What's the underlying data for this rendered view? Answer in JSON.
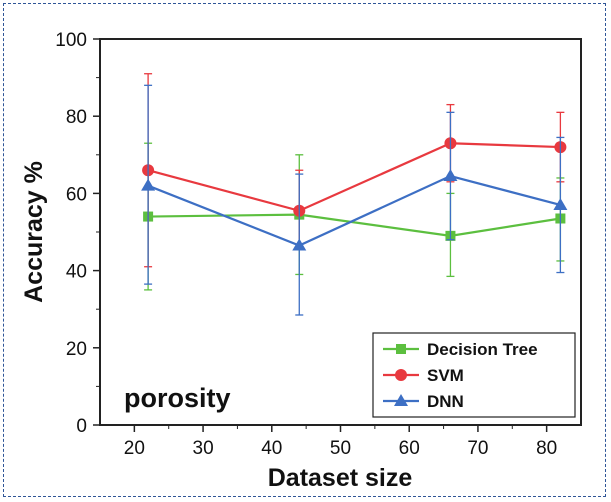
{
  "chart_data": {
    "type": "line",
    "title": "",
    "annotation": "porosity",
    "xlabel": "Dataset size",
    "ylabel": "Accuracy %",
    "xlim": [
      15,
      85
    ],
    "ylim": [
      0,
      100
    ],
    "xticks": [
      20,
      30,
      40,
      50,
      60,
      70,
      80
    ],
    "yticks": [
      0,
      20,
      40,
      60,
      80,
      100
    ],
    "legend_position": "bottom-right",
    "series": [
      {
        "name": "Decision Tree",
        "color": "#5cbf3f",
        "marker": "square",
        "x": [
          22,
          44,
          66,
          82
        ],
        "y": [
          54,
          54.5,
          49,
          53.5
        ],
        "err_low": [
          35,
          39,
          38.5,
          42.5
        ],
        "err_high": [
          73,
          70,
          60,
          64
        ]
      },
      {
        "name": "SVM",
        "color": "#e8393f",
        "marker": "circle",
        "x": [
          22,
          44,
          66,
          82
        ],
        "y": [
          66,
          55.5,
          73,
          72
        ],
        "err_low": [
          41,
          45.5,
          63,
          63
        ],
        "err_high": [
          91,
          66,
          83,
          81
        ]
      },
      {
        "name": "DNN",
        "color": "#3d6fc4",
        "marker": "triangle",
        "x": [
          22,
          44,
          66,
          82
        ],
        "y": [
          62,
          46.5,
          64.5,
          57
        ],
        "err_low": [
          36.5,
          28.5,
          48,
          39.5
        ],
        "err_high": [
          88,
          65,
          81,
          74.5
        ]
      }
    ]
  }
}
